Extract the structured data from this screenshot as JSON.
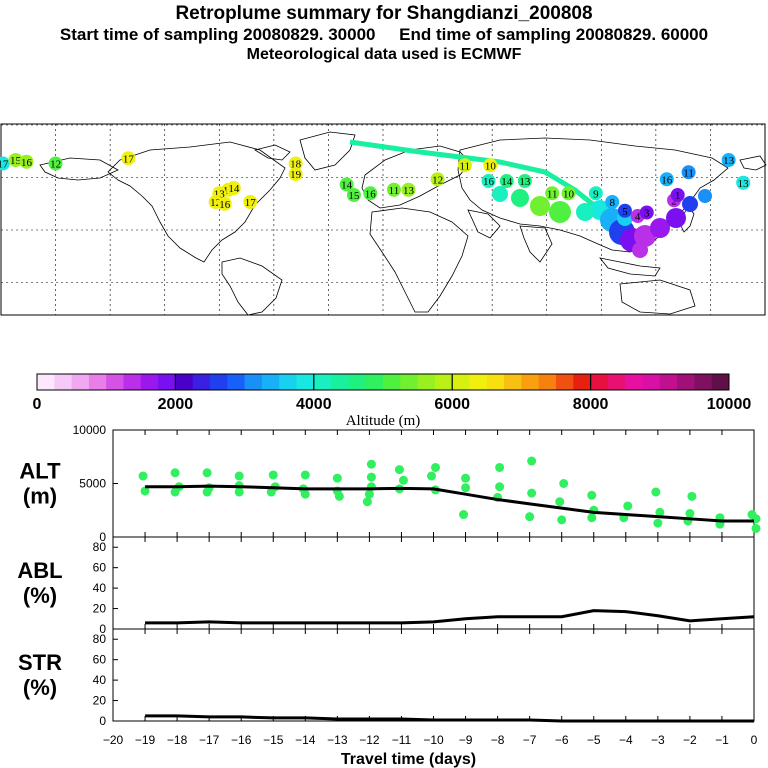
{
  "header": {
    "title": "Retroplume summary for Shangdianzi_200808",
    "sampling": "Start time of sampling 20080829. 30000     End time of sampling 20080829. 60000",
    "meteo": "Meteorological data used is ECMWF"
  },
  "colorbar": {
    "label": "Altitude (m)",
    "ticks": [
      "0",
      "2000",
      "4000",
      "6000",
      "8000",
      "10000"
    ],
    "colors": [
      "#fce8fc",
      "#f7c9f7",
      "#f0a8f0",
      "#e87ee8",
      "#d452e6",
      "#b930e8",
      "#9a18ee",
      "#7a10f0",
      "#4a00c8",
      "#3a20e0",
      "#2040f0",
      "#1860f8",
      "#1890f8",
      "#18b0f8",
      "#18d0f0",
      "#18e8e0",
      "#18f0c0",
      "#18f0a0",
      "#20f080",
      "#30f060",
      "#50f040",
      "#70f030",
      "#98f020",
      "#b8f018",
      "#d8f010",
      "#f0f010",
      "#f8e010",
      "#f8c010",
      "#f8a010",
      "#f88010",
      "#f05010",
      "#e82010",
      "#e81040",
      "#e81070",
      "#e810a0",
      "#d810a8",
      "#c01090",
      "#a01078",
      "#801060",
      "#601048"
    ]
  },
  "map": {
    "labels": [
      {
        "t": "17",
        "lon": -179,
        "lat": 38,
        "c": "#18e8e0"
      },
      {
        "t": "15",
        "lon": -172,
        "lat": 40,
        "c": "#98f020"
      },
      {
        "t": "16",
        "lon": -166,
        "lat": 39,
        "c": "#98f020"
      },
      {
        "t": "12",
        "lon": -150,
        "lat": 38,
        "c": "#50f040"
      },
      {
        "t": "17",
        "lon": -110,
        "lat": 41,
        "c": "#f0f010"
      },
      {
        "t": "18",
        "lon": -18,
        "lat": 38,
        "c": "#f0f010"
      },
      {
        "t": "19",
        "lon": -18,
        "lat": 32,
        "c": "#f0f010"
      },
      {
        "t": "10",
        "lon": -55,
        "lat": 23,
        "c": "#f0f010"
      },
      {
        "t": "13",
        "lon": -60,
        "lat": 21,
        "c": "#f0f010"
      },
      {
        "t": "14",
        "lon": -52,
        "lat": 24,
        "c": "#f0f010"
      },
      {
        "t": "12",
        "lon": -62,
        "lat": 16,
        "c": "#f0f010"
      },
      {
        "t": "16",
        "lon": -57,
        "lat": 15,
        "c": "#f0f010"
      },
      {
        "t": "17",
        "lon": -43,
        "lat": 16,
        "c": "#f0f010"
      },
      {
        "t": "14",
        "lon": 10,
        "lat": 26,
        "c": "#50f040"
      },
      {
        "t": "15",
        "lon": 14,
        "lat": 20,
        "c": "#50f040"
      },
      {
        "t": "16",
        "lon": 23,
        "lat": 21,
        "c": "#50f040"
      },
      {
        "t": "11",
        "lon": 36,
        "lat": 23,
        "c": "#70f030"
      },
      {
        "t": "13",
        "lon": 44,
        "lat": 23,
        "c": "#98f020"
      },
      {
        "t": "12",
        "lon": 60,
        "lat": 29,
        "c": "#b8f018"
      },
      {
        "t": "11",
        "lon": 75,
        "lat": 37,
        "c": "#d8f010"
      },
      {
        "t": "10",
        "lon": 89,
        "lat": 37,
        "c": "#f0f010"
      },
      {
        "t": "16",
        "lon": 88,
        "lat": 28,
        "c": "#18f0c0"
      },
      {
        "t": "14",
        "lon": 98,
        "lat": 28,
        "c": "#20f080"
      },
      {
        "t": "13",
        "lon": 108,
        "lat": 28,
        "c": "#20f080"
      },
      {
        "t": "11",
        "lon": 123,
        "lat": 21,
        "c": "#70f030"
      },
      {
        "t": "10",
        "lon": 132,
        "lat": 21,
        "c": "#70f030"
      },
      {
        "t": "9",
        "lon": 147,
        "lat": 21,
        "c": "#18f0c0"
      },
      {
        "t": "8",
        "lon": 156,
        "lat": 16,
        "c": "#18b0f8"
      },
      {
        "t": "5",
        "lon": 163,
        "lat": 11,
        "c": "#2040f0"
      },
      {
        "t": "4",
        "lon": 170,
        "lat": 8,
        "c": "#b930e8"
      },
      {
        "t": "3",
        "lon": 175,
        "lat": 10,
        "c": "#7a10f0"
      },
      {
        "t": "2",
        "lon": 190,
        "lat": 17,
        "c": "#b930e8"
      },
      {
        "t": "1",
        "lon": 192,
        "lat": 20,
        "c": "#7a10f0"
      },
      {
        "t": "11",
        "lon": 198,
        "lat": 33,
        "c": "#1890f8"
      },
      {
        "t": "16",
        "lon": 186,
        "lat": 29,
        "c": "#18b0f8"
      },
      {
        "t": "13",
        "lon": 220,
        "lat": 40,
        "c": "#18b0f8"
      },
      {
        "t": "13",
        "lon": 228,
        "lat": 27,
        "c": "#18e8e0"
      }
    ]
  },
  "chart_data": [
    {
      "type": "line",
      "panel": "ALT",
      "title": "ALT",
      "ylabel": "(m)",
      "xlabel": "Travel time (days)",
      "xlim": [
        -20,
        0
      ],
      "ylim": [
        0,
        10000
      ],
      "yticks": [
        "10000",
        "5000",
        "0"
      ],
      "x": [
        -19,
        -18,
        -17,
        -16,
        -15,
        -14,
        -13,
        -12,
        -11,
        -10,
        -9,
        -8,
        -7,
        -6,
        -5,
        -4,
        -3,
        -2,
        -1,
        0
      ],
      "values": [
        4700,
        4700,
        4750,
        4700,
        4600,
        4500,
        4500,
        4500,
        4550,
        4500,
        4000,
        3500,
        3100,
        2700,
        2300,
        2100,
        1900,
        1700,
        1500,
        1500
      ],
      "scatter_points": [
        {
          "x": -19,
          "y": 5700
        },
        {
          "x": -19,
          "y": 4300
        },
        {
          "x": -18,
          "y": 6000
        },
        {
          "x": -18,
          "y": 4700
        },
        {
          "x": -18,
          "y": 4200
        },
        {
          "x": -17,
          "y": 6000
        },
        {
          "x": -17,
          "y": 4600
        },
        {
          "x": -17,
          "y": 4200
        },
        {
          "x": -16,
          "y": 5700
        },
        {
          "x": -16,
          "y": 4800
        },
        {
          "x": -16,
          "y": 4200
        },
        {
          "x": -15,
          "y": 5800
        },
        {
          "x": -15,
          "y": 4700
        },
        {
          "x": -15,
          "y": 4200
        },
        {
          "x": -14,
          "y": 5800
        },
        {
          "x": -14,
          "y": 4500
        },
        {
          "x": -14,
          "y": 4000
        },
        {
          "x": -13,
          "y": 5500
        },
        {
          "x": -13,
          "y": 4300
        },
        {
          "x": -13,
          "y": 3800
        },
        {
          "x": -12,
          "y": 6800
        },
        {
          "x": -12,
          "y": 5600
        },
        {
          "x": -12,
          "y": 4700
        },
        {
          "x": -12,
          "y": 4000
        },
        {
          "x": -12,
          "y": 3300
        },
        {
          "x": -11,
          "y": 6300
        },
        {
          "x": -11,
          "y": 5300
        },
        {
          "x": -11,
          "y": 4500
        },
        {
          "x": -10,
          "y": 6500
        },
        {
          "x": -10,
          "y": 5700
        },
        {
          "x": -10,
          "y": 4400
        },
        {
          "x": -9,
          "y": 5500
        },
        {
          "x": -9,
          "y": 4600
        },
        {
          "x": -9,
          "y": 2100
        },
        {
          "x": -8,
          "y": 6500
        },
        {
          "x": -8,
          "y": 4700
        },
        {
          "x": -8,
          "y": 3700
        },
        {
          "x": -7,
          "y": 7100
        },
        {
          "x": -7,
          "y": 4100
        },
        {
          "x": -7,
          "y": 1900
        },
        {
          "x": -6,
          "y": 5000
        },
        {
          "x": -6,
          "y": 3300
        },
        {
          "x": -6,
          "y": 1600
        },
        {
          "x": -5,
          "y": 3900
        },
        {
          "x": -5,
          "y": 2500
        },
        {
          "x": -5,
          "y": 1800
        },
        {
          "x": -4,
          "y": 2900
        },
        {
          "x": -4,
          "y": 1800
        },
        {
          "x": -3,
          "y": 4200
        },
        {
          "x": -3,
          "y": 2300
        },
        {
          "x": -3,
          "y": 1300
        },
        {
          "x": -2,
          "y": 3800
        },
        {
          "x": -2,
          "y": 2200
        },
        {
          "x": -2,
          "y": 1500
        },
        {
          "x": -1,
          "y": 1800
        },
        {
          "x": -1,
          "y": 1200
        },
        {
          "x": 0,
          "y": 2100
        },
        {
          "x": 0,
          "y": 1700
        },
        {
          "x": 0,
          "y": 800
        }
      ]
    },
    {
      "type": "line",
      "panel": "ABL",
      "title": "ABL",
      "ylabel": "(%)",
      "xlim": [
        -20,
        0
      ],
      "ylim": [
        0,
        90
      ],
      "yticks": [
        "80",
        "60",
        "40",
        "20",
        "0"
      ],
      "x": [
        -19,
        -18,
        -17,
        -16,
        -15,
        -14,
        -13,
        -12,
        -11,
        -10,
        -9,
        -8,
        -7,
        -6,
        -5,
        -4,
        -3,
        -2,
        -1,
        0
      ],
      "values": [
        6,
        6,
        7,
        6,
        6,
        6,
        6,
        6,
        6,
        7,
        10,
        12,
        12,
        12,
        18,
        17,
        13,
        8,
        10,
        12
      ]
    },
    {
      "type": "line",
      "panel": "STR",
      "title": "STR",
      "ylabel": "(%)",
      "xlim": [
        -20,
        0
      ],
      "ylim": [
        0,
        90
      ],
      "yticks": [
        "80",
        "60",
        "40",
        "20",
        "0"
      ],
      "x": [
        -19,
        -18,
        -17,
        -16,
        -15,
        -14,
        -13,
        -12,
        -11,
        -10,
        -9,
        -8,
        -7,
        -6,
        -5,
        -4,
        -3,
        -2,
        -1,
        0
      ],
      "values": [
        5,
        5,
        4,
        4,
        3,
        3,
        2,
        2,
        2,
        1,
        1,
        1,
        1,
        0,
        0,
        0,
        0,
        0,
        0,
        0
      ]
    }
  ],
  "xaxis": {
    "ticks": [
      "−20",
      "−19",
      "−18",
      "−17",
      "−16",
      "−15",
      "−14",
      "−13",
      "−12",
      "−11",
      "−10",
      "−9",
      "−8",
      "−7",
      "−6",
      "−5",
      "−4",
      "−3",
      "−2",
      "−1",
      "0"
    ],
    "title": "Travel time (days)"
  }
}
